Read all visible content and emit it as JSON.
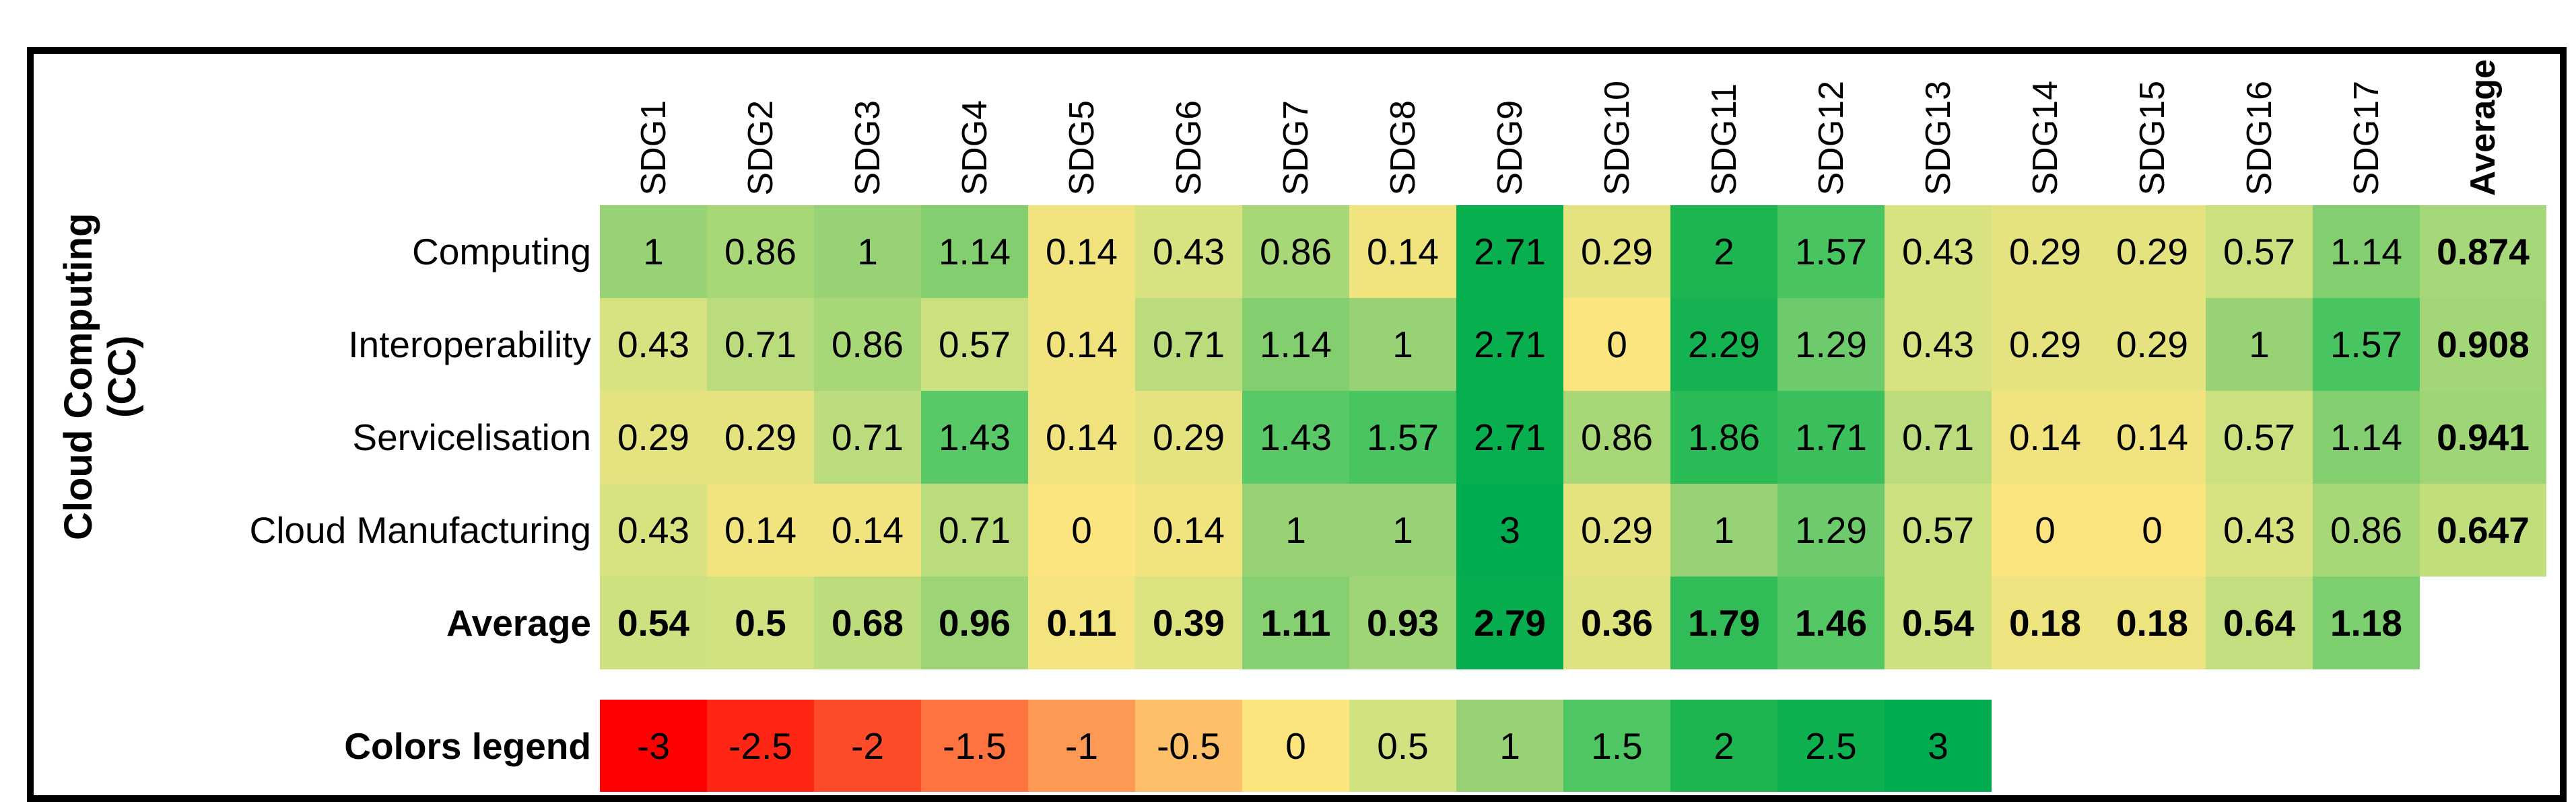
{
  "chart_data": {
    "type": "heatmap",
    "row_group_label": "Cloud Computing (CC)",
    "columns": [
      "SDG1",
      "SDG2",
      "SDG3",
      "SDG4",
      "SDG5",
      "SDG6",
      "SDG7",
      "SDG8",
      "SDG9",
      "SDG10",
      "SDG11",
      "SDG12",
      "SDG13",
      "SDG14",
      "SDG15",
      "SDG16",
      "SDG17",
      "Average"
    ],
    "average_column_label": "Average",
    "rows": [
      {
        "label": "Computing",
        "bold": false,
        "values": [
          1,
          0.86,
          1,
          1.14,
          0.14,
          0.43,
          0.86,
          0.14,
          2.71,
          0.29,
          2,
          1.57,
          0.43,
          0.29,
          0.29,
          0.57,
          1.14
        ],
        "average": 0.874
      },
      {
        "label": "Interoperability",
        "bold": false,
        "values": [
          0.43,
          0.71,
          0.86,
          0.57,
          0.14,
          0.71,
          1.14,
          1,
          2.71,
          0,
          2.29,
          1.29,
          0.43,
          0.29,
          0.29,
          1,
          1.57
        ],
        "average": 0.908
      },
      {
        "label": "Servicelisation",
        "bold": false,
        "values": [
          0.29,
          0.29,
          0.71,
          1.43,
          0.14,
          0.29,
          1.43,
          1.57,
          2.71,
          0.86,
          1.86,
          1.71,
          0.71,
          0.14,
          0.14,
          0.57,
          1.14
        ],
        "average": 0.941
      },
      {
        "label": "Cloud Manufacturing",
        "bold": false,
        "values": [
          0.43,
          0.14,
          0.14,
          0.71,
          0,
          0.14,
          1,
          1,
          3,
          0.29,
          1,
          1.29,
          0.57,
          0,
          0,
          0.43,
          0.86
        ],
        "average": 0.647
      },
      {
        "label": "Average",
        "bold": true,
        "values": [
          0.54,
          0.5,
          0.68,
          0.96,
          0.11,
          0.39,
          1.11,
          0.93,
          2.79,
          0.36,
          1.79,
          1.46,
          0.54,
          0.18,
          0.18,
          0.64,
          1.18
        ],
        "average": null
      }
    ],
    "legend": {
      "label": "Colors legend",
      "values": [
        -3,
        -2.5,
        -2,
        -1.5,
        -1,
        -0.5,
        0,
        0.5,
        1,
        1.5,
        2,
        2.5,
        3
      ]
    },
    "color_scale": {
      "anchors": [
        {
          "value": -3,
          "color": "#FF0000"
        },
        {
          "value": 0,
          "color": "#FCE57E"
        },
        {
          "value": 0.5,
          "color": "#D3E281"
        },
        {
          "value": 1,
          "color": "#97D375"
        },
        {
          "value": 1.5,
          "color": "#4FC664"
        },
        {
          "value": 2,
          "color": "#1CB550"
        },
        {
          "value": 3,
          "color": "#00AC4F"
        }
      ]
    },
    "layout": {
      "grid_on": false,
      "legend_position": "bottom"
    }
  }
}
